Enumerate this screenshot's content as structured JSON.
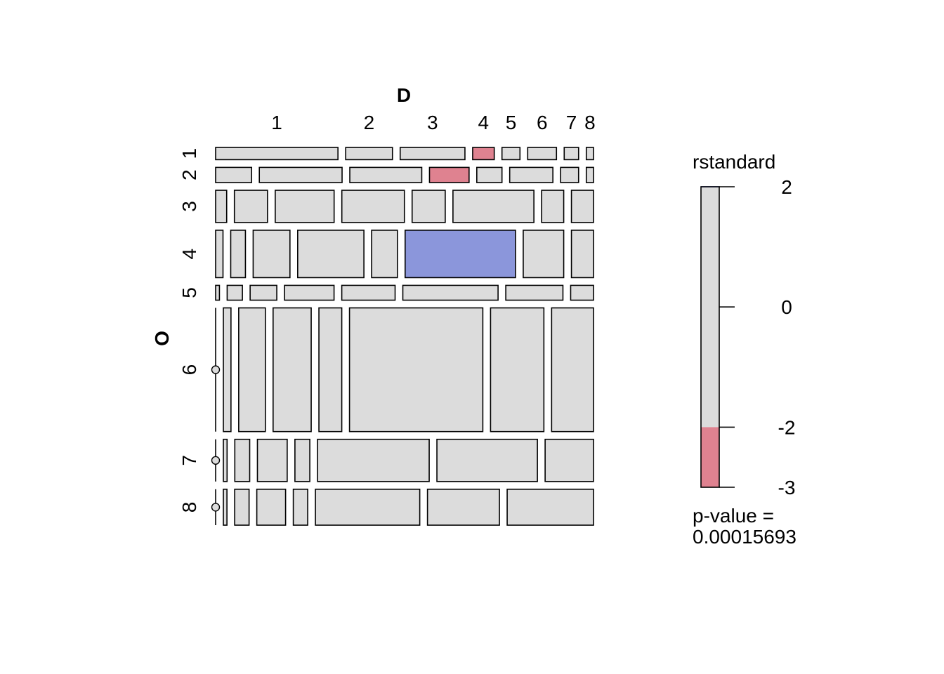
{
  "chart_data": {
    "type": "mosaic",
    "title": "",
    "x_variable": "D",
    "y_variable": "O",
    "x_categories": [
      "1",
      "2",
      "3",
      "4",
      "5",
      "6",
      "7",
      "8"
    ],
    "y_categories": [
      "1",
      "2",
      "3",
      "4",
      "5",
      "6",
      "7",
      "8"
    ],
    "row_proportions": [
      0.033,
      0.041,
      0.087,
      0.128,
      0.04,
      0.334,
      0.114,
      0.097
    ],
    "cell_proportions": [
      [
        0.34,
        0.13,
        0.18,
        0.06,
        0.05,
        0.08,
        0.04,
        0.02
      ],
      [
        0.1,
        0.23,
        0.2,
        0.11,
        0.07,
        0.12,
        0.05,
        0.02
      ],
      [
        0.03,
        0.09,
        0.16,
        0.17,
        0.09,
        0.22,
        0.06,
        0.06
      ],
      [
        0.02,
        0.04,
        0.1,
        0.18,
        0.07,
        0.3,
        0.11,
        0.06
      ],
      [
        0.01,
        0.04,
        0.07,
        0.13,
        0.14,
        0.25,
        0.15,
        0.06
      ],
      [
        0.0,
        0.02,
        0.07,
        0.1,
        0.06,
        0.35,
        0.14,
        0.11
      ],
      [
        0.0,
        0.01,
        0.04,
        0.08,
        0.04,
        0.3,
        0.27,
        0.13
      ],
      [
        0.0,
        0.01,
        0.04,
        0.08,
        0.04,
        0.29,
        0.2,
        0.24
      ]
    ],
    "residuals": [
      [
        0,
        0,
        0,
        -2.6,
        0,
        0,
        0,
        0
      ],
      [
        0,
        0,
        0,
        -2.4,
        0,
        0,
        0,
        0
      ],
      [
        0,
        0,
        0,
        0,
        0,
        0,
        0,
        0
      ],
      [
        0,
        0,
        0,
        0,
        0,
        2.1,
        0,
        0
      ],
      [
        0,
        0,
        0,
        0,
        0,
        0,
        0,
        0
      ],
      [
        0,
        0,
        0,
        0,
        0,
        0,
        0,
        0
      ],
      [
        0,
        0,
        0,
        0,
        0,
        0,
        0,
        0
      ],
      [
        0,
        0,
        0,
        0,
        0,
        0,
        0,
        0
      ]
    ],
    "legend": {
      "title": "rstandard",
      "ticks": [
        "2",
        "0",
        "-2",
        "-3"
      ],
      "range": [
        -3,
        2
      ],
      "neutral_band": [
        -2,
        2
      ],
      "p_value_label": "p-value =",
      "p_value": "0.00015693"
    },
    "colors": {
      "neutral": "#dcdcdc",
      "negative": "#df8290",
      "positive": "#8b96db",
      "border": "#000000"
    }
  }
}
